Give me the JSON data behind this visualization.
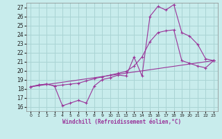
{
  "title": "",
  "xlabel": "Windchill (Refroidissement éolien,°C)",
  "ylabel": "",
  "bg_color": "#c8ecec",
  "grid_color": "#aad4d4",
  "line_color": "#993399",
  "xlim": [
    -0.5,
    23.5
  ],
  "ylim": [
    15.5,
    27.5
  ],
  "yticks": [
    16,
    17,
    18,
    19,
    20,
    21,
    22,
    23,
    24,
    25,
    26,
    27
  ],
  "xticks": [
    0,
    1,
    2,
    3,
    4,
    5,
    6,
    7,
    8,
    9,
    10,
    11,
    12,
    13,
    14,
    15,
    16,
    17,
    18,
    19,
    20,
    21,
    22,
    23
  ],
  "series1_x": [
    0,
    1,
    2,
    3,
    4,
    5,
    6,
    7,
    8,
    9,
    10,
    11,
    12,
    13,
    14,
    15,
    16,
    17,
    18,
    19,
    20,
    21,
    22,
    23
  ],
  "series1_y": [
    18.2,
    18.4,
    18.5,
    18.3,
    16.1,
    16.4,
    16.7,
    16.4,
    18.3,
    19.0,
    19.2,
    19.5,
    19.4,
    21.5,
    19.4,
    26.0,
    27.1,
    26.7,
    27.3,
    24.2,
    23.8,
    22.9,
    21.3,
    21.1
  ],
  "series2_x": [
    0,
    1,
    2,
    3,
    4,
    5,
    6,
    7,
    8,
    9,
    10,
    11,
    12,
    13,
    14,
    15,
    16,
    17,
    18,
    19,
    20,
    21,
    22,
    23
  ],
  "series2_y": [
    18.2,
    18.4,
    18.5,
    18.3,
    18.4,
    18.5,
    18.6,
    18.85,
    19.1,
    19.3,
    19.5,
    19.7,
    19.9,
    20.5,
    21.5,
    23.2,
    24.2,
    24.4,
    24.5,
    21.1,
    20.8,
    20.5,
    20.3,
    21.1
  ],
  "series3_x": [
    0,
    23
  ],
  "series3_y": [
    18.2,
    21.1
  ]
}
